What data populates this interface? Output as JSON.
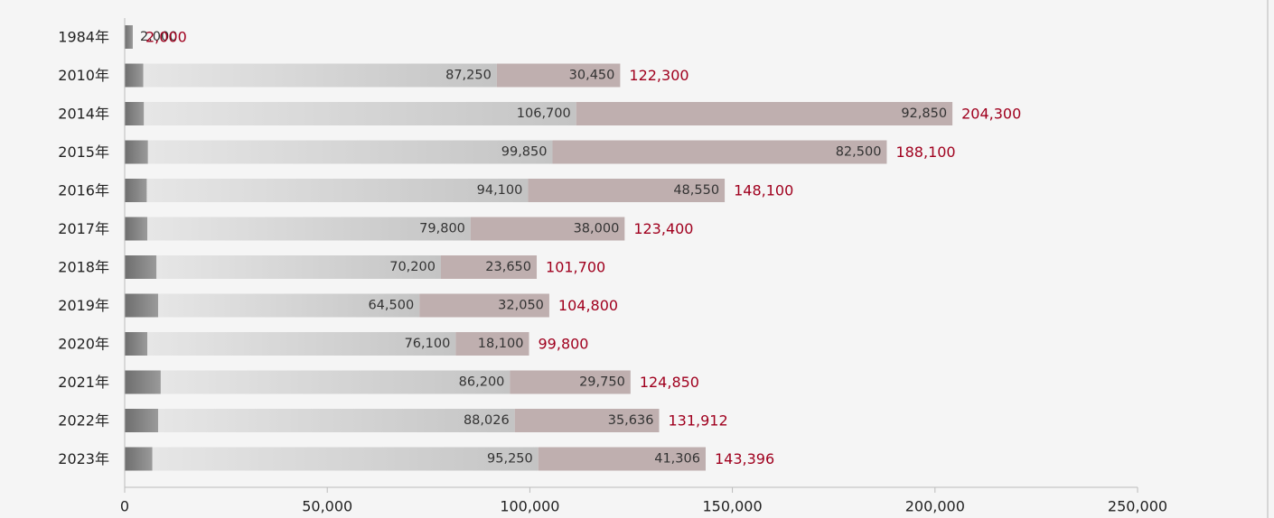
{
  "chart_data": {
    "type": "bar",
    "orientation": "horizontal",
    "stacked": true,
    "categories": [
      "1984年",
      "2010年",
      "2014年",
      "2015年",
      "2016年",
      "2017年",
      "2018年",
      "2019年",
      "2020年",
      "2021年",
      "2022年",
      "2023年"
    ],
    "series": [
      {
        "values": [
          2000,
          4600,
          4750,
          5750,
          5450,
          5600,
          7850,
          8250,
          5600,
          8900,
          8250,
          6840
        ]
      },
      {
        "values": [
          null,
          87250,
          106700,
          99850,
          94100,
          79800,
          70200,
          64500,
          76100,
          86200,
          88026,
          95250
        ]
      },
      {
        "values": [
          null,
          30450,
          92850,
          82500,
          48550,
          38000,
          23650,
          32050,
          18100,
          29750,
          35636,
          41306
        ]
      }
    ],
    "totals": [
      2000,
      122300,
      204300,
      188100,
      148100,
      123400,
      101700,
      104800,
      99800,
      124850,
      131912,
      143396
    ],
    "xlim": [
      0,
      250000
    ],
    "xticks": [
      0,
      50000,
      100000,
      150000,
      200000,
      250000
    ],
    "title": "",
    "xlabel": "",
    "ylabel": "",
    "grid": false,
    "legend": "none"
  },
  "colors": {
    "background": "#f5f5f5",
    "segment1_dark": "#6e6e6e",
    "segment1_light": "#9a9a9a",
    "segment2_light": "#e6e6e6",
    "segment2_dark": "#c4c4c4",
    "segment3": "#bfafaf",
    "total_label": "#a0001e",
    "value_label": "#333333",
    "axis": "#bbbbbb"
  }
}
